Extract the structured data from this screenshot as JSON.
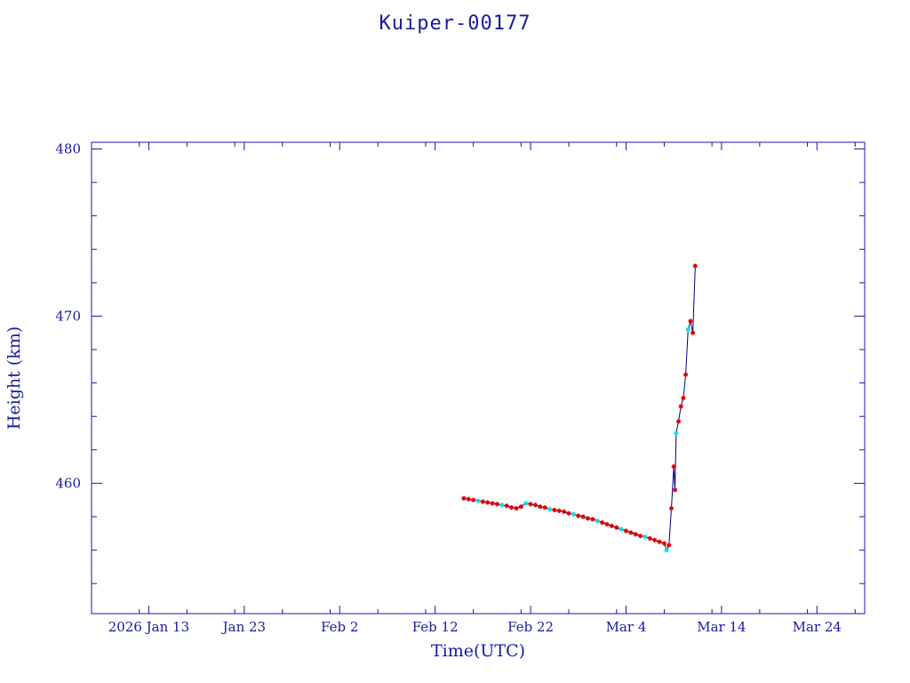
{
  "chart_data": {
    "type": "scatter",
    "title": "Kuiper-00177",
    "xlabel": "Time(UTC)",
    "ylabel": "Height (km)",
    "x_ticks": [
      {
        "label": "2026 Jan 13",
        "date": "2026-01-13"
      },
      {
        "label": "Jan 23",
        "date": "2026-01-23"
      },
      {
        "label": "Feb  2",
        "date": "2026-02-02"
      },
      {
        "label": "Feb 12",
        "date": "2026-02-12"
      },
      {
        "label": "Feb 22",
        "date": "2026-02-22"
      },
      {
        "label": "Mar  4",
        "date": "2026-03-04"
      },
      {
        "label": "Mar 14",
        "date": "2026-03-14"
      },
      {
        "label": "Mar 24",
        "date": "2026-03-24"
      }
    ],
    "y_ticks": [
      460,
      470,
      480
    ],
    "xlim": [
      "2026-01-07",
      "2026-03-29"
    ],
    "ylim": [
      452.2,
      480.4
    ],
    "grid": false,
    "series": [
      {
        "color": "#000080",
        "marker_colors": [
          "#e00000",
          "#00e0e0"
        ],
        "points": [
          [
            "2026-02-15T00:00",
            459.1
          ],
          [
            "2026-02-15T12:00",
            459.05
          ],
          [
            "2026-02-16T00:00",
            459.0
          ],
          [
            "2026-02-16T12:00",
            458.95
          ],
          [
            "2026-02-17T00:00",
            458.9
          ],
          [
            "2026-02-17T12:00",
            458.85
          ],
          [
            "2026-02-18T00:00",
            458.8
          ],
          [
            "2026-02-18T12:00",
            458.75
          ],
          [
            "2026-02-19T00:00",
            458.7
          ],
          [
            "2026-02-19T12:00",
            458.65
          ],
          [
            "2026-02-20T00:00",
            458.55
          ],
          [
            "2026-02-20T12:00",
            458.5
          ],
          [
            "2026-02-21T00:00",
            458.6
          ],
          [
            "2026-02-21T12:00",
            458.8
          ],
          [
            "2026-02-22T00:00",
            458.75
          ],
          [
            "2026-02-22T12:00",
            458.7
          ],
          [
            "2026-02-23T00:00",
            458.6
          ],
          [
            "2026-02-23T12:00",
            458.55
          ],
          [
            "2026-02-24T00:00",
            458.45
          ],
          [
            "2026-02-24T12:00",
            458.4
          ],
          [
            "2026-02-25T00:00",
            458.35
          ],
          [
            "2026-02-25T12:00",
            458.3
          ],
          [
            "2026-02-26T00:00",
            458.2
          ],
          [
            "2026-02-26T12:00",
            458.15
          ],
          [
            "2026-02-27T00:00",
            458.05
          ],
          [
            "2026-02-27T12:00",
            458.0
          ],
          [
            "2026-02-28T00:00",
            457.9
          ],
          [
            "2026-02-28T12:00",
            457.85
          ],
          [
            "2026-03-01T00:00",
            457.75
          ],
          [
            "2026-03-01T12:00",
            457.65
          ],
          [
            "2026-03-02T00:00",
            457.55
          ],
          [
            "2026-03-02T12:00",
            457.45
          ],
          [
            "2026-03-03T00:00",
            457.35
          ],
          [
            "2026-03-03T12:00",
            457.25
          ],
          [
            "2026-03-04T00:00",
            457.15
          ],
          [
            "2026-03-04T12:00",
            457.05
          ],
          [
            "2026-03-05T00:00",
            456.95
          ],
          [
            "2026-03-05T12:00",
            456.85
          ],
          [
            "2026-03-06T00:00",
            456.8
          ],
          [
            "2026-03-06T12:00",
            456.7
          ],
          [
            "2026-03-07T00:00",
            456.6
          ],
          [
            "2026-03-07T12:00",
            456.5
          ],
          [
            "2026-03-08T00:00",
            456.4
          ],
          [
            "2026-03-08T06:00",
            456.0
          ],
          [
            "2026-03-08T12:00",
            456.3
          ],
          [
            "2026-03-08T18:00",
            458.5
          ],
          [
            "2026-03-09T00:00",
            461.0
          ],
          [
            "2026-03-09T03:00",
            459.6
          ],
          [
            "2026-03-09T06:00",
            463.0
          ],
          [
            "2026-03-09T12:00",
            463.7
          ],
          [
            "2026-03-09T18:00",
            464.6
          ],
          [
            "2026-03-10T00:00",
            465.1
          ],
          [
            "2026-03-10T06:00",
            466.5
          ],
          [
            "2026-03-10T12:00",
            469.2
          ],
          [
            "2026-03-10T18:00",
            469.7
          ],
          [
            "2026-03-11T00:00",
            469.0
          ],
          [
            "2026-03-11T06:00",
            473.0
          ]
        ]
      }
    ]
  }
}
